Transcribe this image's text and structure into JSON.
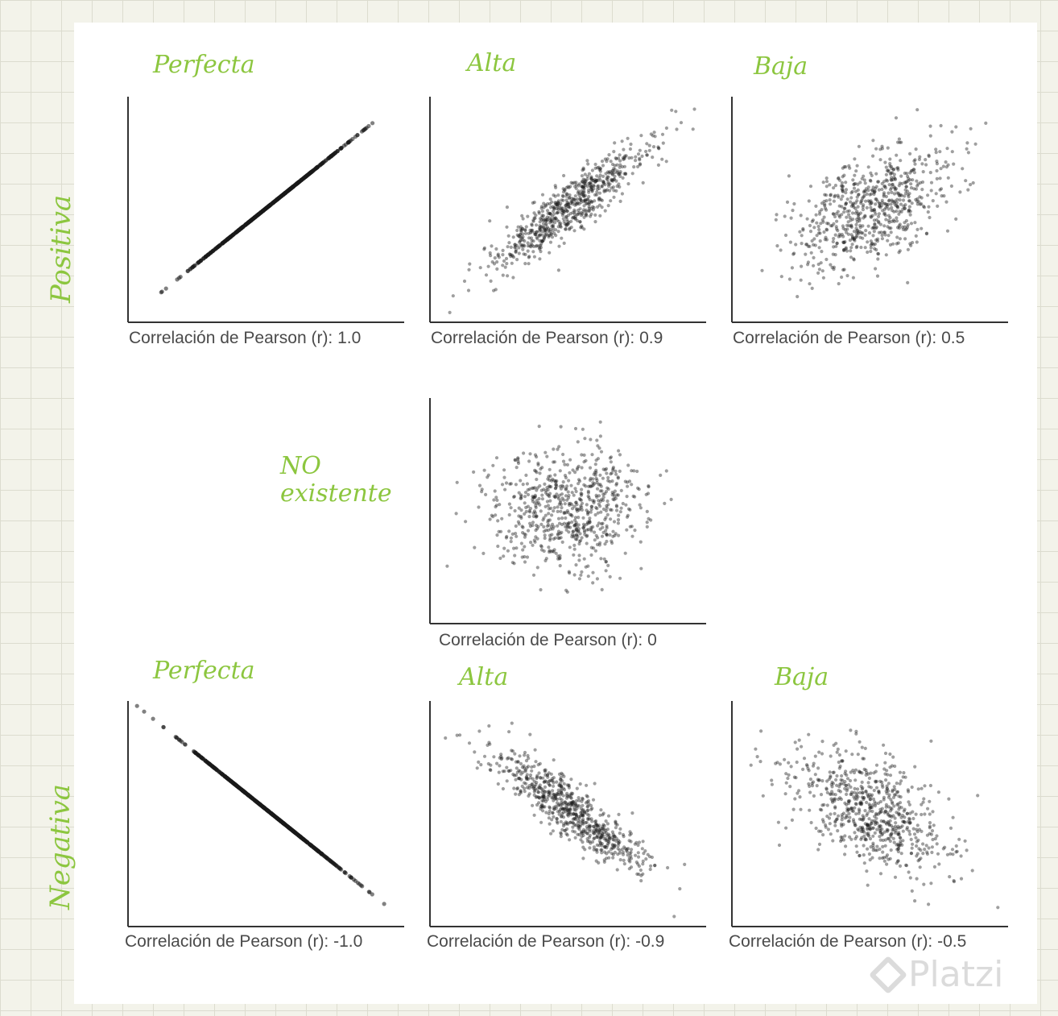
{
  "labels": {
    "positiva": "Positiva",
    "negativa": "Negativa",
    "no_existente_1": "NO",
    "no_existente_2": "existente",
    "perfecta_pos": "Perfecta",
    "alta_pos": "Alta",
    "baja_pos": "Baja",
    "perfecta_neg": "Perfecta",
    "alta_neg": "Alta",
    "baja_neg": "Baja"
  },
  "watermark": "Platzi",
  "colors": {
    "handwriting": "#8cc63f",
    "points": "#1a1a1a",
    "axes": "#333333"
  },
  "chart_data": [
    {
      "type": "scatter",
      "correlation": 1.0,
      "caption": "Correlación de Pearson (r): 1.0",
      "n_points": 700
    },
    {
      "type": "scatter",
      "correlation": 0.9,
      "caption": "Correlación de Pearson (r): 0.9",
      "n_points": 700
    },
    {
      "type": "scatter",
      "correlation": 0.5,
      "caption": "Correlación de Pearson (r): 0.5",
      "n_points": 700
    },
    {
      "type": "scatter",
      "correlation": 0,
      "caption": "Correlación de Pearson (r): 0",
      "n_points": 700
    },
    {
      "type": "scatter",
      "correlation": -1.0,
      "caption": "Correlación de Pearson (r): -1.0",
      "n_points": 700
    },
    {
      "type": "scatter",
      "correlation": -0.9,
      "caption": "Correlación de Pearson (r): -0.9",
      "n_points": 700
    },
    {
      "type": "scatter",
      "correlation": -0.5,
      "caption": "Correlación de Pearson (r): -0.5",
      "n_points": 700
    }
  ]
}
